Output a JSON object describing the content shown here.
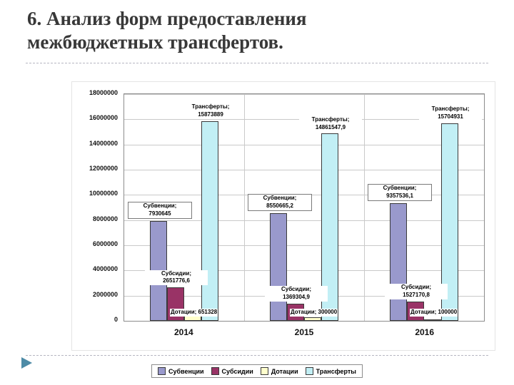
{
  "slide": {
    "title_line1": "6. Анализ форм предоставления",
    "title_line2": "межбюджетных трансфертов."
  },
  "chart_data": {
    "type": "bar",
    "categories": [
      "2014",
      "2015",
      "2016"
    ],
    "series": [
      {
        "name": "Субвенции",
        "color": "#9999CC",
        "values": [
          7930645,
          8550665.2,
          9357536.1
        ],
        "labels": [
          "7930645",
          "8550665,2",
          "9357536,1"
        ]
      },
      {
        "name": "Субсидии",
        "color": "#993366",
        "values": [
          2651776.6,
          1369304.9,
          1527170.8
        ],
        "labels": [
          "2651776,6",
          "1369304,9",
          "1527170,8"
        ]
      },
      {
        "name": "Дотации",
        "color": "#FFFFCC",
        "values": [
          651328,
          300000,
          100000
        ],
        "labels": [
          "651328",
          "300000",
          "100000"
        ]
      },
      {
        "name": "Трансферты",
        "color": "#C2EFF5",
        "values": [
          15873889,
          14861547.9,
          15704931
        ],
        "labels": [
          "15873889",
          "14861547,9",
          "15704931"
        ]
      }
    ],
    "ylim": [
      0,
      18000000
    ],
    "ytick_step": 2000000,
    "yticks": [
      "0",
      "2000000",
      "4000000",
      "6000000",
      "8000000",
      "10000000",
      "12000000",
      "14000000",
      "16000000",
      "18000000"
    ],
    "legend": [
      "Субвенции",
      "Субсидии",
      "Дотации",
      "Трансферты"
    ],
    "legend_position": "bottom",
    "grid": true
  }
}
